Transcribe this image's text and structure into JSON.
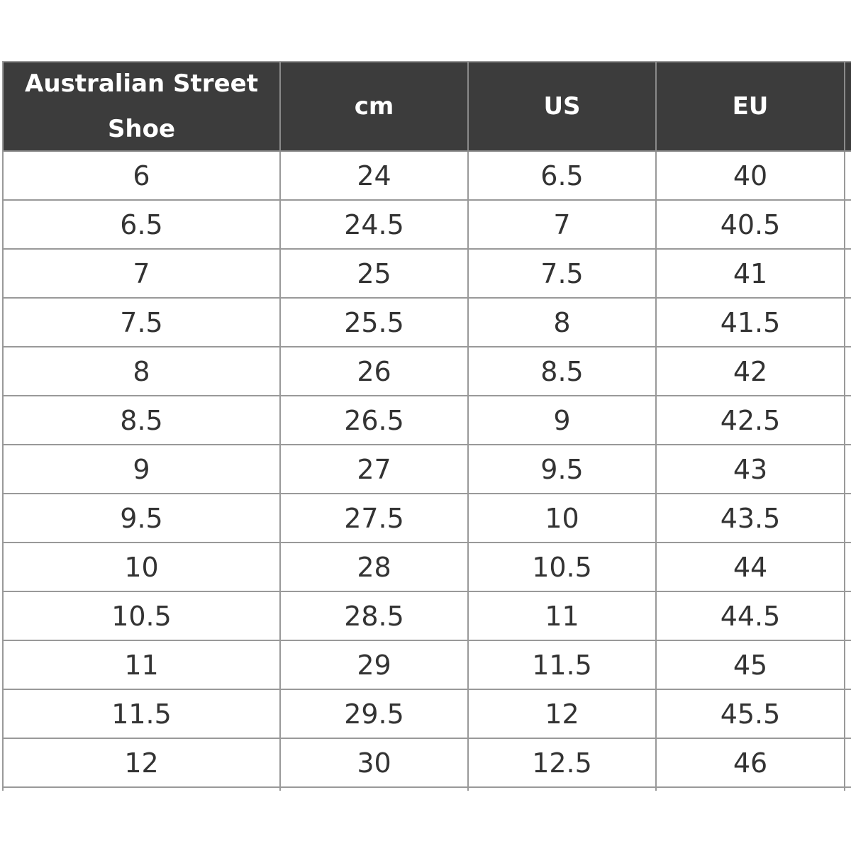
{
  "table": {
    "header": [
      "Australian Street Shoe",
      "cm",
      "US",
      "EU"
    ],
    "rows": [
      [
        "6",
        "24",
        "6.5",
        "40"
      ],
      [
        "6.5",
        "24.5",
        "7",
        "40.5"
      ],
      [
        "7",
        "25",
        "7.5",
        "41"
      ],
      [
        "7.5",
        "25.5",
        "8",
        "41.5"
      ],
      [
        "8",
        "26",
        "8.5",
        "42"
      ],
      [
        "8.5",
        "26.5",
        "9",
        "42.5"
      ],
      [
        "9",
        "27",
        "9.5",
        "43"
      ],
      [
        "9.5",
        "27.5",
        "10",
        "43.5"
      ],
      [
        "10",
        "28",
        "10.5",
        "44"
      ],
      [
        "10.5",
        "28.5",
        "11",
        "44.5"
      ],
      [
        "11",
        "29",
        "11.5",
        "45"
      ],
      [
        "11.5",
        "29.5",
        "12",
        "45.5"
      ],
      [
        "12",
        "30",
        "12.5",
        "46"
      ]
    ]
  }
}
